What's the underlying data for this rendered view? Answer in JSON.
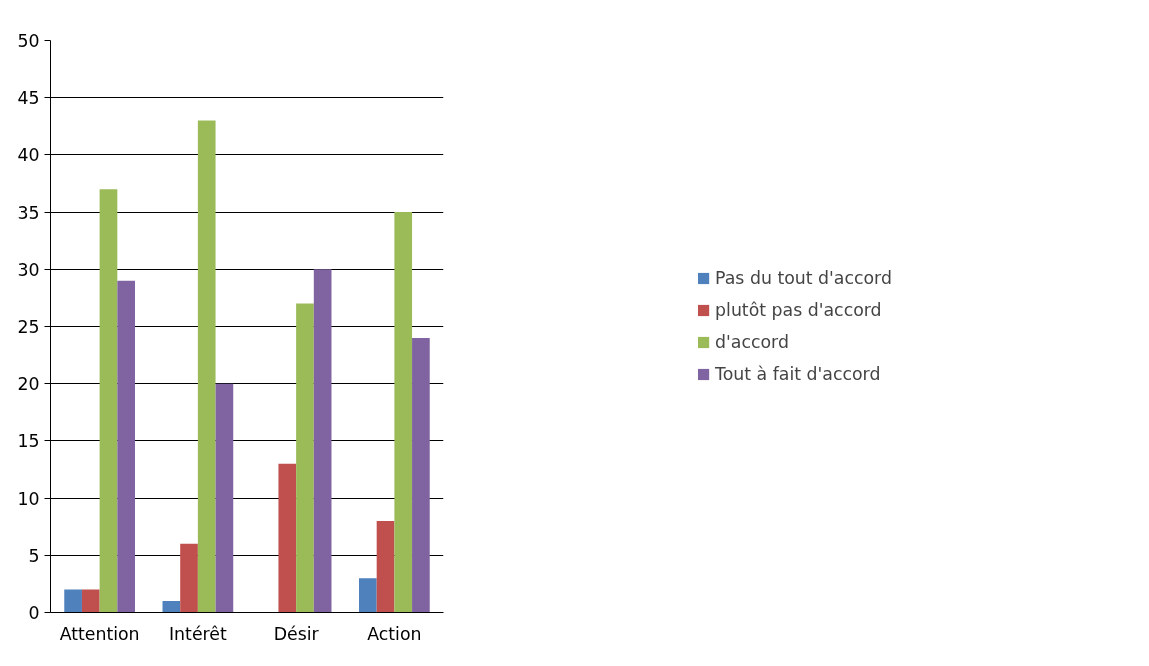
{
  "chart_data": {
    "type": "bar",
    "categories": [
      "Attention",
      "Intérêt",
      "Désir",
      "Action"
    ],
    "series": [
      {
        "name": "Pas du tout d'accord",
        "color": "#4f81bd",
        "values": [
          2,
          1,
          0,
          3
        ]
      },
      {
        "name": "plutôt pas d'accord",
        "color": "#c0504d",
        "values": [
          2,
          6,
          13,
          8
        ]
      },
      {
        "name": "d'accord",
        "color": "#9bbb59",
        "values": [
          37,
          43,
          27,
          35
        ]
      },
      {
        "name": "Tout à fait d'accord",
        "color": "#8064a2",
        "values": [
          29,
          20,
          30,
          24
        ]
      }
    ],
    "ylim": [
      0,
      50
    ],
    "yticks": [
      0,
      5,
      10,
      15,
      20,
      25,
      30,
      35,
      40,
      45,
      50
    ],
    "grid": "y",
    "legend": "right"
  }
}
